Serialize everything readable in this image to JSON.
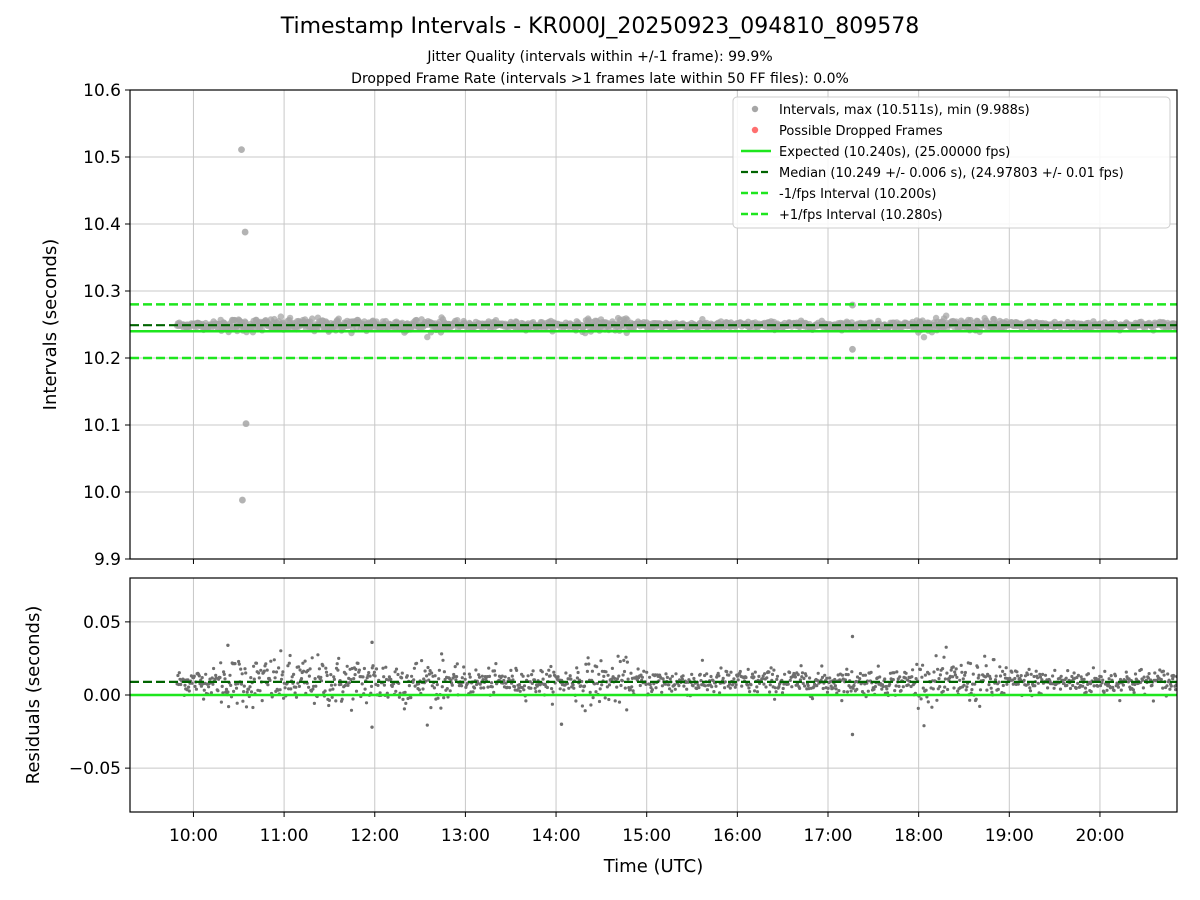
{
  "title": "Timestamp Intervals - KR000J_20250923_094810_809578",
  "subtitle_lines": [
    "Jitter Quality (intervals within +/-1 frame): 99.9%",
    "Dropped Frame Rate (intervals >1 frames late within 50 FF files): 0.0%"
  ],
  "colors": {
    "intervals": "#a6a6a6",
    "dropped": "#ff5f5f",
    "expected": "#1ee61e",
    "median": "#006400",
    "interval_bounds": "#1ee61e",
    "residual_points": "#6e6e6e",
    "grid": "#c8c8c8"
  },
  "chart_data": [
    {
      "type": "scatter",
      "ylabel": "Intervals (seconds)",
      "ylim": [
        9.9,
        10.6
      ],
      "yticks": [
        9.9,
        10.0,
        10.1,
        10.2,
        10.3,
        10.4,
        10.5,
        10.6
      ],
      "ytick_labels": [
        "9.9",
        "10.0",
        "10.1",
        "10.2",
        "10.3",
        "10.4",
        "10.5",
        "10.6"
      ],
      "xlim_hours": [
        9.3,
        20.85
      ],
      "grid": true,
      "legend_position": "top-right",
      "legend": [
        {
          "label": "Intervals, max (10.511s), min (9.988s)",
          "kind": "dot-gray"
        },
        {
          "label": "Possible Dropped Frames",
          "kind": "dot-red"
        },
        {
          "label": "Expected (10.240s), (25.00000 fps)",
          "kind": "line-solid"
        },
        {
          "label": "Median (10.249 +/- 0.006 s), (24.97803 +/- 0.01 fps)",
          "kind": "line-dash-dark"
        },
        {
          "label": "-1/fps Interval (10.200s)",
          "kind": "line-dash-light"
        },
        {
          "label": "+1/fps Interval (10.280s)",
          "kind": "line-dash-light"
        }
      ],
      "reference_lines": {
        "expected": 10.24,
        "median": 10.249,
        "lower_interval": 10.2,
        "upper_interval": 10.28
      },
      "data_range_hours": [
        9.82,
        20.85
      ],
      "central_value": 10.249,
      "outliers": [
        {
          "x": 10.53,
          "y": 10.511
        },
        {
          "x": 10.57,
          "y": 10.388
        },
        {
          "x": 10.58,
          "y": 10.102
        },
        {
          "x": 10.54,
          "y": 9.988
        },
        {
          "x": 17.27,
          "y": 10.279
        },
        {
          "x": 17.27,
          "y": 10.213
        }
      ]
    },
    {
      "type": "scatter",
      "ylabel": "Residuals (seconds)",
      "xlabel": "Time (UTC)",
      "ylim": [
        -0.08,
        0.08
      ],
      "yticks": [
        -0.05,
        0.0,
        0.05
      ],
      "ytick_labels": [
        "−0.05",
        "0.00",
        "0.05"
      ],
      "xticks_hours": [
        10,
        11,
        12,
        13,
        14,
        15,
        16,
        17,
        18,
        19,
        20
      ],
      "xtick_labels": [
        "10:00",
        "11:00",
        "12:00",
        "13:00",
        "14:00",
        "15:00",
        "16:00",
        "17:00",
        "18:00",
        "19:00",
        "20:00"
      ],
      "xlim_hours": [
        9.3,
        20.85
      ],
      "grid": true,
      "reference_lines": {
        "expected": 0.0,
        "median": 0.009
      },
      "data_range_hours": [
        9.82,
        20.85
      ],
      "central_value": 0.009,
      "outliers": [
        {
          "x": 17.27,
          "y": 0.04
        },
        {
          "x": 17.27,
          "y": -0.027
        },
        {
          "x": 11.97,
          "y": 0.036
        },
        {
          "x": 10.38,
          "y": 0.034
        },
        {
          "x": 11.97,
          "y": -0.022
        },
        {
          "x": 14.06,
          "y": -0.02
        }
      ]
    }
  ]
}
